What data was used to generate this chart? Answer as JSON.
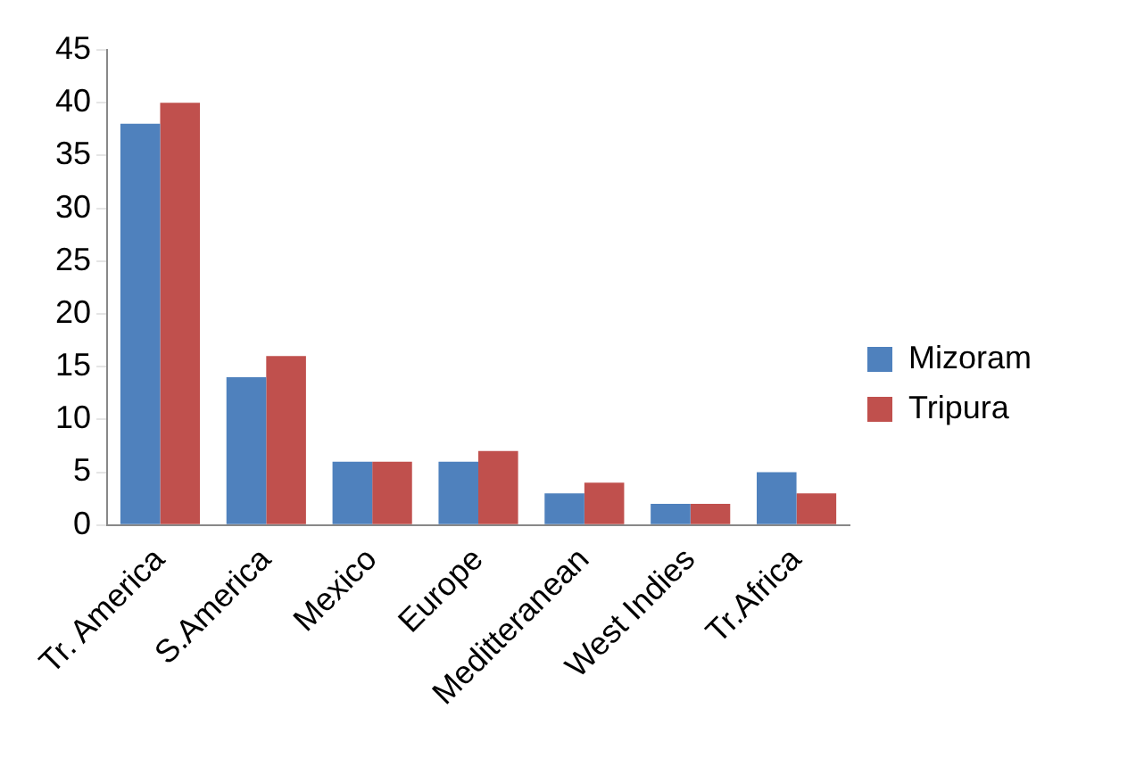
{
  "chart_data": {
    "type": "bar",
    "categories": [
      "Tr. America",
      "S.America",
      "Mexico",
      "Europe",
      "Meditteranean",
      "West Indies",
      "Tr.Africa"
    ],
    "series": [
      {
        "name": "Mizoram",
        "color": "#4f81bd",
        "values": [
          38,
          14,
          6,
          6,
          3,
          2,
          5
        ]
      },
      {
        "name": "Tripura",
        "color": "#c0504d",
        "values": [
          40,
          16,
          6,
          7,
          4,
          2,
          3
        ]
      }
    ],
    "ylim": [
      0,
      45
    ],
    "yticks": [
      0,
      5,
      10,
      15,
      20,
      25,
      30,
      35,
      40,
      45
    ],
    "grid": false,
    "legend": "right"
  }
}
